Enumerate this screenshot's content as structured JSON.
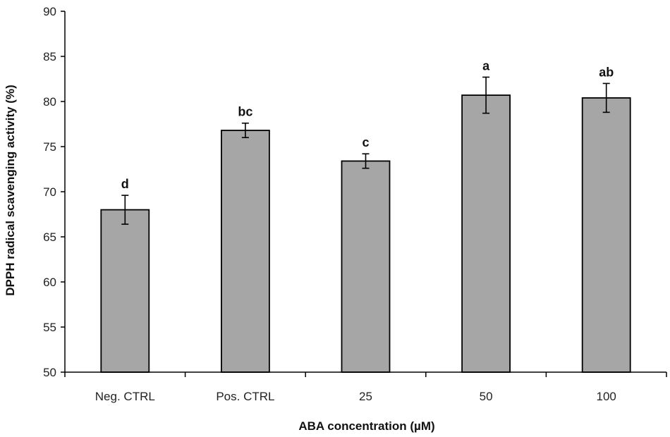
{
  "chart_data": {
    "type": "bar",
    "title": "",
    "xlabel": "ABA concentration (µM)",
    "ylabel": "DPPH radical scavenging activity (%)",
    "categories": [
      "Neg. CTRL",
      "Pos. CTRL",
      "25",
      "50",
      "100"
    ],
    "values": [
      68.0,
      76.8,
      73.4,
      80.7,
      80.4
    ],
    "errors": [
      1.6,
      0.8,
      0.8,
      2.0,
      1.6
    ],
    "significance_letters": [
      "d",
      "bc",
      "c",
      "a",
      "ab"
    ],
    "ylim": [
      50,
      90
    ],
    "yticks": [
      50,
      55,
      60,
      65,
      70,
      75,
      80,
      85,
      90
    ],
    "grid": false,
    "legend": "none",
    "colors": {
      "bar_fill": "#a6a6a6",
      "bar_stroke": "#000000",
      "axis": "#000000"
    }
  }
}
